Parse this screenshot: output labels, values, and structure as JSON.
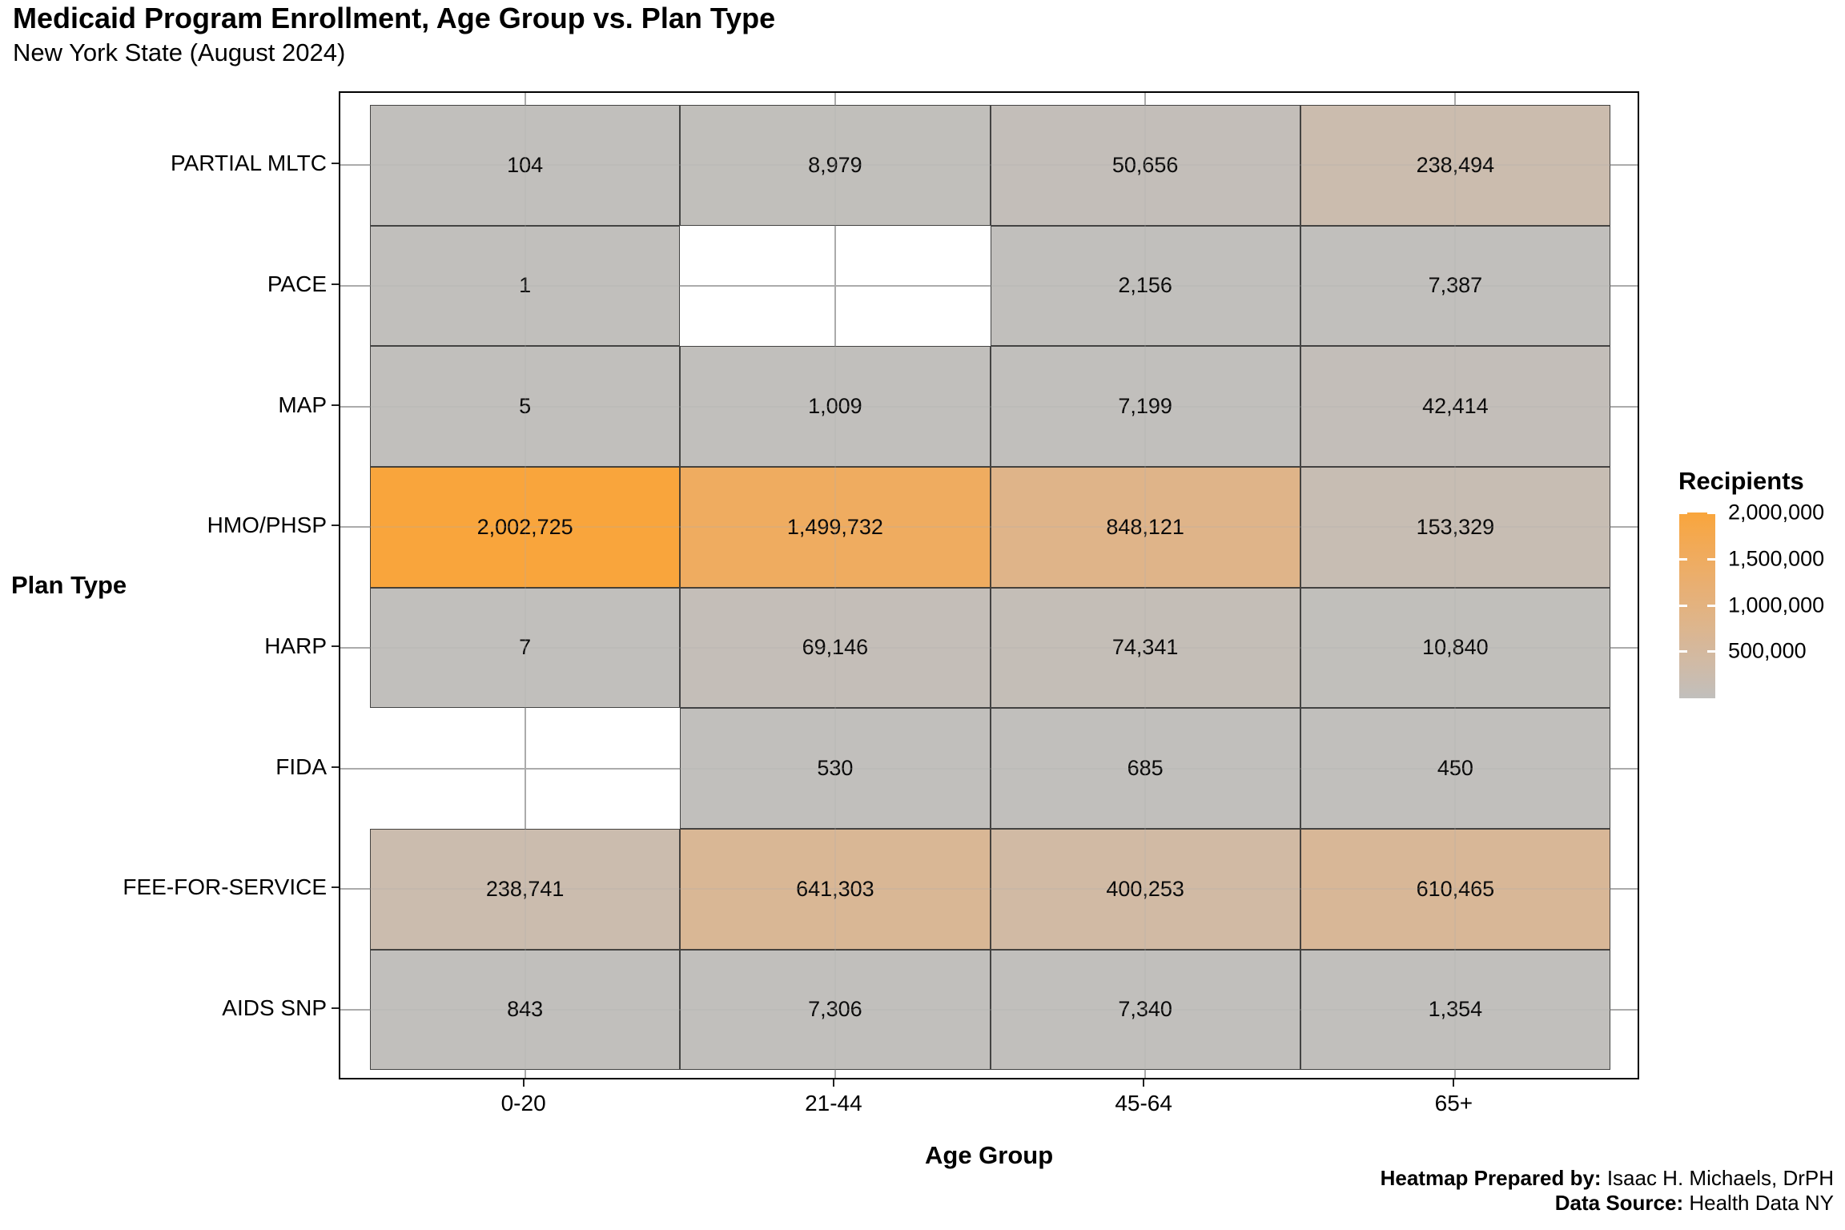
{
  "title": "Medicaid Program Enrollment, Age Group vs. Plan Type",
  "subtitle": "New York State (August 2024)",
  "axes": {
    "x": {
      "title": "Age Group",
      "categories": [
        "0-20",
        "21-44",
        "45-64",
        "65+"
      ]
    },
    "y": {
      "title": "Plan Type",
      "categories_top_to_bottom": [
        "PARTIAL MLTC",
        "PACE",
        "MAP",
        "HMO/PHSP",
        "HARP",
        "FIDA",
        "FEE-FOR-SERVICE",
        "AIDS SNP"
      ]
    }
  },
  "legend": {
    "title": "Recipients",
    "ticks": [
      {
        "value": 2000000,
        "label": "2,000,000"
      },
      {
        "value": 1500000,
        "label": "1,500,000"
      },
      {
        "value": 1000000,
        "label": "1,000,000"
      },
      {
        "value": 500000,
        "label": "500,000"
      }
    ],
    "min_value": 0,
    "max_value": 2002725,
    "low_color": "#c1bfbc",
    "high_color": "#f9a53c"
  },
  "chart_data": {
    "type": "heatmap",
    "x_categories": [
      "0-20",
      "21-44",
      "45-64",
      "65+"
    ],
    "y_categories_top_to_bottom": [
      "PARTIAL MLTC",
      "PACE",
      "MAP",
      "HMO/PHSP",
      "HARP",
      "FIDA",
      "FEE-FOR-SERVICE",
      "AIDS SNP"
    ],
    "series": [
      {
        "name": "PARTIAL MLTC",
        "values": [
          104,
          8979,
          50656,
          238494
        ],
        "labels": [
          "104",
          "8,979",
          "50,656",
          "238,494"
        ]
      },
      {
        "name": "PACE",
        "values": [
          1,
          null,
          2156,
          7387
        ],
        "labels": [
          "1",
          "",
          "2,156",
          "7,387"
        ]
      },
      {
        "name": "MAP",
        "values": [
          5,
          1009,
          7199,
          42414
        ],
        "labels": [
          "5",
          "1,009",
          "7,199",
          "42,414"
        ]
      },
      {
        "name": "HMO/PHSP",
        "values": [
          2002725,
          1499732,
          848121,
          153329
        ],
        "labels": [
          "2,002,725",
          "1,499,732",
          "848,121",
          "153,329"
        ]
      },
      {
        "name": "HARP",
        "values": [
          7,
          69146,
          74341,
          10840
        ],
        "labels": [
          "7",
          "69,146",
          "74,341",
          "10,840"
        ]
      },
      {
        "name": "FIDA",
        "values": [
          null,
          530,
          685,
          450
        ],
        "labels": [
          "",
          "530",
          "685",
          "450"
        ]
      },
      {
        "name": "FEE-FOR-SERVICE",
        "values": [
          238741,
          641303,
          400253,
          610465
        ],
        "labels": [
          "238,741",
          "641,303",
          "400,253",
          "610,465"
        ]
      },
      {
        "name": "AIDS SNP",
        "values": [
          843,
          7306,
          7340,
          1354
        ],
        "labels": [
          "843",
          "7,306",
          "7,340",
          "1,354"
        ]
      }
    ]
  },
  "footer": {
    "lines": [
      {
        "bold": "Heatmap Prepared by:",
        "text": " Isaac H. Michaels, DrPH"
      },
      {
        "bold": "Data Source:",
        "text": " Health Data NY"
      }
    ]
  }
}
